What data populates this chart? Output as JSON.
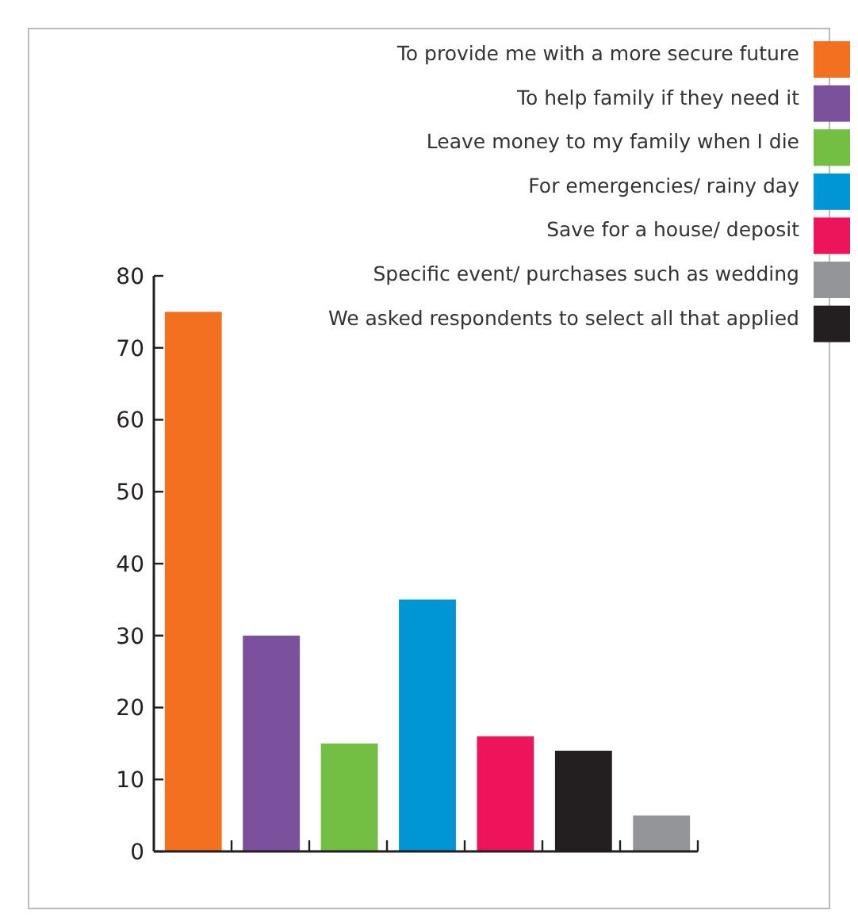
{
  "chart_data": {
    "type": "bar",
    "categories": [
      null,
      null,
      null,
      null,
      null,
      null,
      null
    ],
    "series": [
      {
        "name": "To provide me with a more secure future",
        "color": "#f37021",
        "values": [
          75,
          null,
          null,
          null,
          null,
          null,
          null
        ]
      },
      {
        "name": "To help family if they need it",
        "color": "#7b519d",
        "values": [
          null,
          30,
          null,
          null,
          null,
          null,
          null
        ]
      },
      {
        "name": "Leave money to my family when I die",
        "color": "#72bf44",
        "values": [
          null,
          null,
          15,
          null,
          null,
          null,
          null
        ]
      },
      {
        "name": "For emergencies/ rainy day",
        "color": "#0096d6",
        "values": [
          null,
          null,
          null,
          35,
          null,
          null,
          null
        ]
      },
      {
        "name": "Save for a house/ deposit",
        "color": "#ed145b",
        "values": [
          null,
          null,
          null,
          null,
          16,
          null,
          null
        ]
      },
      {
        "name": "Specific event/ purchases such as wedding",
        "color": "#939598",
        "values": [
          null,
          null,
          null,
          null,
          null,
          null,
          5
        ]
      },
      {
        "name": "We asked respondents to select all that applied",
        "color": "#231f20",
        "values": [
          null,
          null,
          null,
          null,
          null,
          14,
          null
        ]
      }
    ],
    "ylim": [
      0,
      80
    ],
    "yticks": [
      0,
      10,
      20,
      30,
      40,
      50,
      60,
      70,
      80
    ],
    "legend": "top right"
  }
}
